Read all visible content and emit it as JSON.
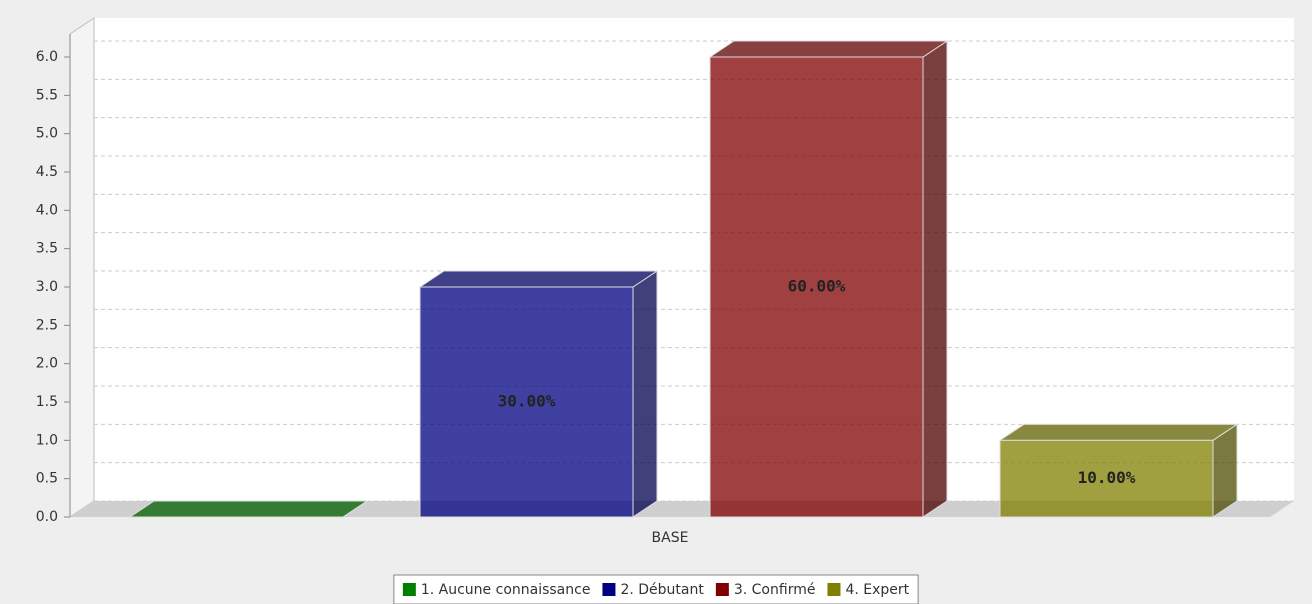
{
  "chart_data": {
    "type": "bar3d",
    "categories": [
      "BASE"
    ],
    "series": [
      {
        "name": "1. Aucune connaissance",
        "color": "#008000",
        "values": [
          0
        ],
        "value_labels": [
          null
        ]
      },
      {
        "name": "2. Débutant",
        "color": "#000080",
        "values": [
          3
        ],
        "value_labels": [
          "30.00%"
        ]
      },
      {
        "name": "3. Confirmé",
        "color": "#800000",
        "values": [
          6
        ],
        "value_labels": [
          "60.00%"
        ]
      },
      {
        "name": "4. Expert",
        "color": "#808000",
        "values": [
          1
        ],
        "value_labels": [
          "10.00%"
        ]
      }
    ],
    "ylim": [
      0,
      6.3
    ],
    "yticks": [
      {
        "value": 0,
        "label": "0.0"
      },
      0.5,
      {
        "value": 1,
        "label": "1.0"
      },
      1.5,
      {
        "value": 2,
        "label": "2.0"
      },
      2.5,
      {
        "value": 3,
        "label": "3.0"
      },
      3.5,
      {
        "value": 4,
        "label": "4.0"
      },
      4.5,
      {
        "value": 5,
        "label": "5.0"
      },
      5.5,
      {
        "value": 6,
        "label": "6.0"
      }
    ],
    "grid": true,
    "legend": "bottom"
  }
}
